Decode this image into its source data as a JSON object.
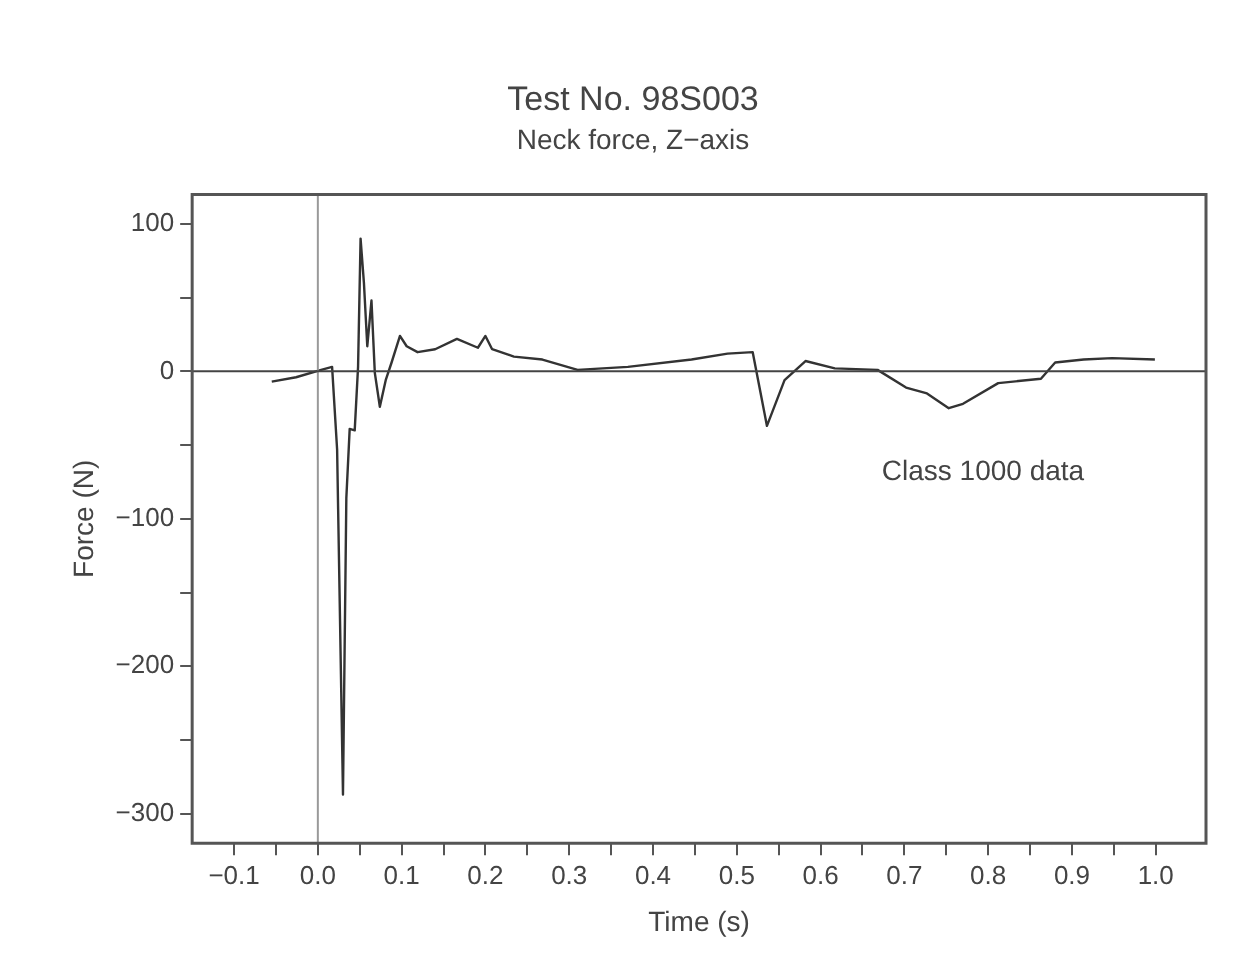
{
  "chart_data": {
    "type": "line",
    "title": "Test No. 98S003",
    "subtitle": "Neck force, Z−axis",
    "xlabel": "Time (s)",
    "ylabel": "Force (N)",
    "annotations": [
      "Class 1000 data"
    ],
    "xlim": [
      -0.15,
      1.06
    ],
    "ylim": [
      -320,
      120
    ],
    "xticks": [
      {
        "value": -0.1,
        "label": "−0.1"
      },
      {
        "value": -0.05,
        "label": null
      },
      {
        "value": 0,
        "label": "0.0"
      },
      {
        "value": 0.05,
        "label": null
      },
      {
        "value": 0.1,
        "label": "0.1"
      },
      {
        "value": 0.15,
        "label": null
      },
      {
        "value": 0.2,
        "label": "0.2"
      },
      {
        "value": 0.25,
        "label": null
      },
      {
        "value": 0.3,
        "label": "0.3"
      },
      {
        "value": 0.35,
        "label": null
      },
      {
        "value": 0.4,
        "label": "0.4"
      },
      {
        "value": 0.45,
        "label": null
      },
      {
        "value": 0.5,
        "label": "0.5"
      },
      {
        "value": 0.55,
        "label": null
      },
      {
        "value": 0.6,
        "label": "0.6"
      },
      {
        "value": 0.65,
        "label": null
      },
      {
        "value": 0.7,
        "label": "0.7"
      },
      {
        "value": 0.75,
        "label": null
      },
      {
        "value": 0.8,
        "label": "0.8"
      },
      {
        "value": 0.85,
        "label": null
      },
      {
        "value": 0.9,
        "label": "0.9"
      },
      {
        "value": 0.95,
        "label": null
      },
      {
        "value": 1.0,
        "label": "1.0"
      }
    ],
    "yticks": [
      {
        "value": -300,
        "label": "−300"
      },
      {
        "value": -250,
        "label": null
      },
      {
        "value": -200,
        "label": "−200"
      },
      {
        "value": -150,
        "label": null
      },
      {
        "value": -100,
        "label": "−100"
      },
      {
        "value": -50,
        "label": null
      },
      0,
      {
        "value": 50,
        "label": null
      },
      100
    ],
    "ref_lines": [
      {
        "axis": "x",
        "value": 0,
        "color": "#999999"
      },
      {
        "axis": "y",
        "value": 0,
        "color": "#444444"
      }
    ],
    "grid": false,
    "legend": false,
    "marker": "none",
    "line_style": "solid",
    "series": [
      {
        "color": "#333333",
        "x": [
          -0.055,
          -0.026,
          0.004,
          0.017,
          0.023,
          0.03,
          0.034,
          0.038,
          0.044,
          0.048,
          0.051,
          0.055,
          0.059,
          0.064,
          0.068,
          0.074,
          0.081,
          0.088,
          0.098,
          0.106,
          0.119,
          0.14,
          0.166,
          0.191,
          0.2,
          0.208,
          0.234,
          0.268,
          0.31,
          0.37,
          0.446,
          0.489,
          0.519,
          0.536,
          0.557,
          0.582,
          0.617,
          0.668,
          0.702,
          0.727,
          0.753,
          0.77,
          0.812,
          0.863,
          0.88,
          0.914,
          0.948,
          0.999
        ],
        "values": [
          -7,
          -4,
          1,
          3,
          -53,
          -287,
          -86,
          -39,
          -40,
          3,
          90,
          60,
          17,
          48,
          -1,
          -24,
          -6,
          6,
          24,
          17,
          13,
          15,
          22,
          16,
          24,
          15,
          10,
          8,
          1,
          3,
          8,
          12,
          13,
          -37,
          -6,
          7,
          2,
          1,
          -11,
          -15,
          -25,
          -22,
          -8,
          -5,
          6,
          8,
          9,
          8
        ]
      }
    ]
  }
}
